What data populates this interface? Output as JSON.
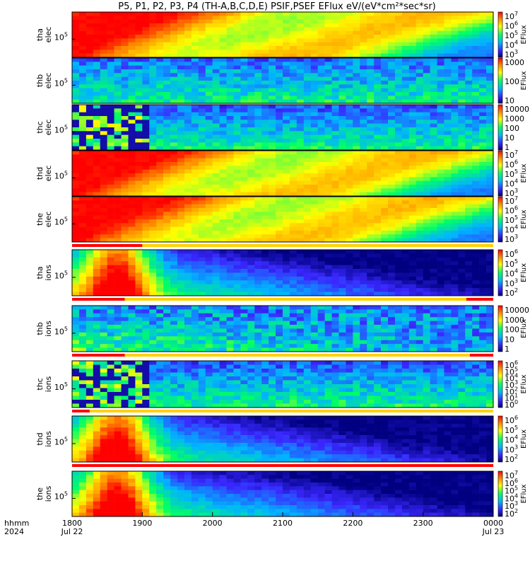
{
  "title": "P5, P1, P2, P3, P4 (TH-A,B,C,D,E) PSIF,PSEF EFlux eV/(eV*cm²*sec*sr)",
  "x_axis": {
    "row1_label": "hhmm",
    "row2_label": "2024",
    "ticks": [
      "1800",
      "1900",
      "2000",
      "2100",
      "2200",
      "2300",
      "0000"
    ],
    "date_labels": [
      "Jul 22",
      "Jul 23"
    ]
  },
  "chart_data": [
    {
      "type": "heatmap",
      "panel": "tha-elec",
      "ylabel": [
        "tha",
        "elec"
      ],
      "ytick": "10^5",
      "colorbar": {
        "label": "EFlux",
        "ticks": [
          "10^7",
          "10^6",
          "10^5",
          "10^4",
          "10^3"
        ]
      },
      "bar": null
    },
    {
      "type": "heatmap",
      "panel": "thb-elec",
      "ylabel": [
        "thb",
        "elec"
      ],
      "ytick": "10^5",
      "colorbar": {
        "label": "EFlux",
        "ticks": [
          "1000",
          "100",
          "10"
        ]
      },
      "bar": null
    },
    {
      "type": "heatmap",
      "panel": "thc-elec",
      "ylabel": [
        "thc",
        "elec"
      ],
      "ytick": "10^5",
      "colorbar": {
        "label": "",
        "ticks": [
          "10000",
          "1000",
          "100",
          "10",
          "1"
        ]
      },
      "bar": null
    },
    {
      "type": "heatmap",
      "panel": "thd-elec",
      "ylabel": [
        "thd",
        "elec"
      ],
      "ytick": "10^5",
      "colorbar": {
        "label": "EFlux",
        "ticks": [
          "10^7",
          "10^6",
          "10^5",
          "10^4",
          "10^3"
        ]
      },
      "bar": null
    },
    {
      "type": "heatmap",
      "panel": "the-elec",
      "ylabel": [
        "the",
        "elec"
      ],
      "ytick": "10^5",
      "colorbar": {
        "label": "EFlux",
        "ticks": [
          "10^7",
          "10^6",
          "10^5",
          "10^4",
          "10^3"
        ]
      },
      "bar": {
        "red": [
          [
            "1800",
            "1900"
          ]
        ]
      }
    },
    {
      "type": "heatmap",
      "panel": "tha-ions",
      "ylabel": [
        "tha",
        "ions"
      ],
      "ytick": "10^5",
      "colorbar": {
        "label": "EFlux",
        "ticks": [
          "10^6",
          "10^5",
          "10^4",
          "10^3",
          "10^2"
        ]
      },
      "bar": {
        "red": [
          [
            "1800",
            "1845"
          ],
          [
            "2337",
            "0000"
          ]
        ]
      }
    },
    {
      "type": "heatmap",
      "panel": "thb-ions",
      "ylabel": [
        "thb",
        "ions"
      ],
      "ytick": "10^5",
      "colorbar": {
        "label": "EFlux",
        "ticks": [
          "10000",
          "1000",
          "100",
          "10",
          "1"
        ]
      },
      "bar": {
        "red": [
          [
            "1800",
            "1845"
          ],
          [
            "2340",
            "0000"
          ]
        ]
      }
    },
    {
      "type": "heatmap",
      "panel": "thc-ions",
      "ylabel": [
        "thc",
        "ions"
      ],
      "ytick": "10^5",
      "colorbar": {
        "label": "EFlux",
        "ticks": [
          "10^6",
          "10^5",
          "10^4",
          "10^3",
          "10^2",
          "10^1",
          "10^0"
        ]
      },
      "bar": {
        "red": [
          [
            "1800",
            "1815"
          ]
        ]
      }
    },
    {
      "type": "heatmap",
      "panel": "thd-ions",
      "ylabel": [
        "thd",
        "ions"
      ],
      "ytick": "10^5",
      "colorbar": {
        "label": "EFlux",
        "ticks": [
          "10^6",
          "10^5",
          "10^4",
          "10^3",
          "10^2"
        ]
      },
      "bar": {
        "red": [
          [
            "1800",
            "0000"
          ]
        ]
      }
    },
    {
      "type": "heatmap",
      "panel": "the-ions",
      "ylabel": [
        "the",
        "ions"
      ],
      "ytick": "10^5",
      "colorbar": {
        "label": "EFlux",
        "ticks": [
          "10^7",
          "10^6",
          "10^5",
          "10^4",
          "10^3",
          "10^2"
        ]
      },
      "bar": null
    }
  ]
}
